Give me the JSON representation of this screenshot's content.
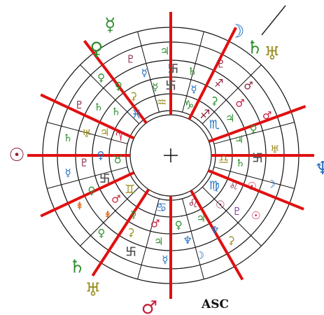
{
  "asc_label": "ASC",
  "center_mark": "+",
  "colors": {
    "ring_stroke": "#111111",
    "house_cusp": "#e01010",
    "green": "#2f8f2f",
    "blue": "#1f6fc0",
    "red": "#c81e3c",
    "maroon": "#8a1f3a",
    "olive": "#9a8f20",
    "purple": "#7a3aa0",
    "orange": "#e07020",
    "gray": "#555555"
  },
  "outer_glyphs": [
    {
      "name": "moon-glyph",
      "glyph": "☽",
      "color": "blue"
    },
    {
      "name": "saturn-glyph",
      "glyph": "♄",
      "color": "green"
    },
    {
      "name": "uranus-glyph",
      "glyph": "♅",
      "color": "olive"
    },
    {
      "name": "mercury-glyph",
      "glyph": "☿",
      "color": "green"
    },
    {
      "name": "venus-glyph",
      "glyph": "♀",
      "color": "green"
    },
    {
      "name": "sun-glyph",
      "glyph": "☉",
      "color": "maroon"
    },
    {
      "name": "neptune-glyph",
      "glyph": "♆",
      "color": "blue"
    },
    {
      "name": "saturn-glyph",
      "glyph": "♄",
      "color": "green"
    },
    {
      "name": "uranus-glyph",
      "glyph": "♅",
      "color": "olive"
    },
    {
      "name": "mars-glyph",
      "glyph": "♂",
      "color": "red"
    }
  ],
  "zodiac_signs": [
    {
      "name": "scorpio-glyph",
      "glyph": "♏",
      "color": "blue"
    },
    {
      "name": "libra-glyph",
      "glyph": "♎",
      "color": "olive"
    },
    {
      "name": "virgo-glyph",
      "glyph": "♍",
      "color": "blue"
    },
    {
      "name": "leo-glyph",
      "glyph": "♌",
      "color": "maroon"
    },
    {
      "name": "cancer-glyph",
      "glyph": "♋",
      "color": "blue"
    },
    {
      "name": "gemini-glyph",
      "glyph": "♊",
      "color": "olive"
    },
    {
      "name": "taurus-glyph",
      "glyph": "♉",
      "color": "green"
    },
    {
      "name": "aries-glyph",
      "glyph": "♈",
      "color": "red"
    },
    {
      "name": "pisces-glyph",
      "glyph": "♓",
      "color": "blue"
    },
    {
      "name": "aquarius-glyph",
      "glyph": "♒",
      "color": "olive"
    },
    {
      "name": "capricorn-glyph",
      "glyph": "♑",
      "color": "green"
    },
    {
      "name": "sagittarius-glyph",
      "glyph": "♐",
      "color": "maroon"
    }
  ],
  "ring_glyphs": [
    {
      "name": "swastika-glyph",
      "glyph": "卐",
      "color": "gray"
    },
    {
      "name": "saturn-glyph",
      "glyph": "♄",
      "color": "green"
    },
    {
      "name": "pluto-glyph",
      "glyph": "♇",
      "color": "maroon"
    },
    {
      "name": "mercury-glyph",
      "glyph": "☿",
      "color": "blue"
    },
    {
      "name": "sagittarius-glyph",
      "glyph": "♐",
      "color": "maroon"
    },
    {
      "name": "mars-glyph",
      "glyph": "♂",
      "color": "maroon"
    },
    {
      "name": "ceres-glyph",
      "glyph": "⚳",
      "color": "green"
    },
    {
      "name": "mars-glyph",
      "glyph": "♂",
      "color": "red"
    },
    {
      "name": "mars-glyph",
      "glyph": "♂",
      "color": "red"
    },
    {
      "name": "jupiter-glyph",
      "glyph": "♃",
      "color": "green"
    },
    {
      "name": "venus-glyph",
      "glyph": "♀",
      "color": "green"
    },
    {
      "name": "uranus-glyph",
      "glyph": "♅",
      "color": "olive"
    },
    {
      "name": "jupiter-glyph",
      "glyph": "♃",
      "color": "green"
    },
    {
      "name": "swastika-glyph",
      "glyph": "卐",
      "color": "gray"
    },
    {
      "name": "moon-glyph",
      "glyph": "☽",
      "color": "blue"
    },
    {
      "name": "saturn-glyph",
      "glyph": "♄",
      "color": "green"
    },
    {
      "name": "sun-glyph",
      "glyph": "☉",
      "color": "red"
    },
    {
      "name": "sun-glyph",
      "glyph": "☉",
      "color": "red"
    },
    {
      "name": "leo-glyph",
      "glyph": "♌",
      "color": "maroon"
    },
    {
      "name": "pluto-glyph",
      "glyph": "♇",
      "color": "purple"
    },
    {
      "name": "ceres-glyph",
      "glyph": "⚳",
      "color": "olive"
    },
    {
      "name": "sun-glyph",
      "glyph": "☉",
      "color": "maroon"
    },
    {
      "name": "neptune-glyph",
      "glyph": "♆",
      "color": "blue"
    },
    {
      "name": "moon-glyph",
      "glyph": "☽",
      "color": "blue"
    },
    {
      "name": "jupiter-glyph",
      "glyph": "♃",
      "color": "green"
    },
    {
      "name": "neptune-glyph",
      "glyph": "♆",
      "color": "blue"
    },
    {
      "name": "mercury-glyph",
      "glyph": "☿",
      "color": "blue"
    },
    {
      "name": "venus-glyph",
      "glyph": "♀",
      "color": "green"
    },
    {
      "name": "jupiter-glyph",
      "glyph": "♃",
      "color": "green"
    },
    {
      "name": "swastika-glyph",
      "glyph": "卐",
      "color": "gray"
    },
    {
      "name": "mars-glyph",
      "glyph": "♂",
      "color": "red"
    },
    {
      "name": "ceres-glyph",
      "glyph": "⚳",
      "color": "olive"
    },
    {
      "name": "venus-glyph",
      "glyph": "♀",
      "color": "green"
    },
    {
      "name": "mercury-glyph",
      "glyph": "☿",
      "color": "green"
    },
    {
      "name": "eris-glyph",
      "glyph": "⯒",
      "color": "orange"
    },
    {
      "name": "eris-glyph",
      "glyph": "⯒",
      "color": "orange"
    },
    {
      "name": "mars-glyph",
      "glyph": "♂",
      "color": "red"
    },
    {
      "name": "venus-glyph",
      "glyph": "♀",
      "color": "green"
    },
    {
      "name": "mercury-glyph",
      "glyph": "☿",
      "color": "blue"
    },
    {
      "name": "swastika-glyph",
      "glyph": "卐",
      "color": "gray"
    },
    {
      "name": "pluto-glyph",
      "glyph": "♇",
      "color": "maroon"
    },
    {
      "name": "saturn-glyph",
      "glyph": "♄",
      "color": "green"
    },
    {
      "name": "venus-glyph",
      "glyph": "♀",
      "color": "blue"
    },
    {
      "name": "uranus-glyph",
      "glyph": "♅",
      "color": "olive"
    },
    {
      "name": "pluto-glyph",
      "glyph": "♇",
      "color": "maroon"
    },
    {
      "name": "jupiter-glyph",
      "glyph": "♃",
      "color": "olive"
    },
    {
      "name": "saturn-glyph",
      "glyph": "♄",
      "color": "green"
    },
    {
      "name": "venus-glyph",
      "glyph": "♀",
      "color": "green"
    },
    {
      "name": "saturn-glyph",
      "glyph": "♄",
      "color": "green"
    },
    {
      "name": "venus-glyph",
      "glyph": "♀",
      "color": "green"
    },
    {
      "name": "pluto-glyph",
      "glyph": "♇",
      "color": "maroon"
    },
    {
      "name": "ceres-glyph",
      "glyph": "⚳",
      "color": "olive"
    },
    {
      "name": "mercury-glyph",
      "glyph": "☿",
      "color": "blue"
    },
    {
      "name": "jupiter-glyph",
      "glyph": "♃",
      "color": "green"
    },
    {
      "name": "mercury-glyph",
      "glyph": "☿",
      "color": "green"
    },
    {
      "name": "swastika-glyph",
      "glyph": "卐",
      "color": "gray"
    }
  ]
}
